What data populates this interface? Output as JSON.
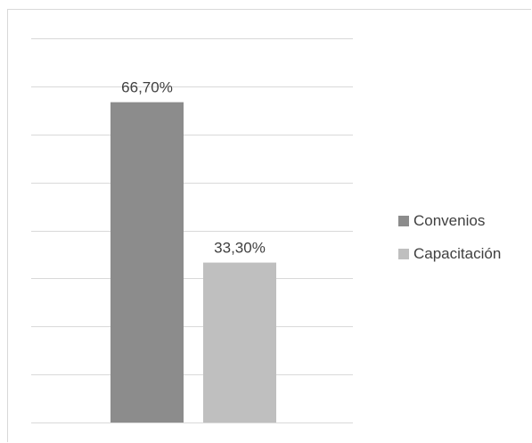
{
  "chart_data": {
    "type": "bar",
    "title": "",
    "xlabel": "",
    "ylabel": "",
    "ylim": [
      0,
      80
    ],
    "grid": true,
    "legend_position": "right",
    "categories": [
      "Convenios",
      "Capacitación"
    ],
    "series": [
      {
        "name": "Convenios",
        "value": 66.7,
        "label": "66,70%",
        "color": "#8c8c8c"
      },
      {
        "name": "Capacitación",
        "value": 33.3,
        "label": "33,30%",
        "color": "#bfbfbf"
      }
    ],
    "gridline_color": "#d9d9d9"
  }
}
